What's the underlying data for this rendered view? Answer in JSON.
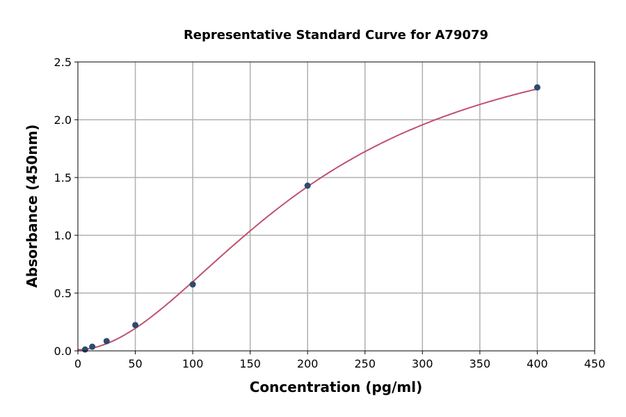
{
  "chart_data": {
    "type": "scatter",
    "title": "Representative Standard Curve for A79079",
    "xlabel": "Concentration (pg/ml)",
    "ylabel": "Absorbance (450nm)",
    "xlim": [
      0,
      450
    ],
    "ylim": [
      0,
      2.5
    ],
    "xticks": [
      0,
      50,
      100,
      150,
      200,
      250,
      300,
      350,
      400,
      450
    ],
    "yticks": [
      0.0,
      0.5,
      1.0,
      1.5,
      2.0,
      2.5
    ],
    "xtick_labels": [
      "0",
      "50",
      "100",
      "150",
      "200",
      "250",
      "300",
      "350",
      "400",
      "450"
    ],
    "ytick_labels": [
      "0.0",
      "0.5",
      "1.0",
      "1.5",
      "2.0",
      "2.5"
    ],
    "grid": true,
    "points": {
      "x": [
        6.25,
        12.5,
        25,
        50,
        100,
        200,
        400
      ],
      "y": [
        0.012,
        0.036,
        0.084,
        0.223,
        0.575,
        1.43,
        2.28
      ],
      "color": "#2e4a6e"
    },
    "fit_curve": {
      "model": "4PL",
      "A": 0.01,
      "B": 1.9,
      "C": 205,
      "D": 2.9,
      "color": "#c0506e"
    }
  }
}
